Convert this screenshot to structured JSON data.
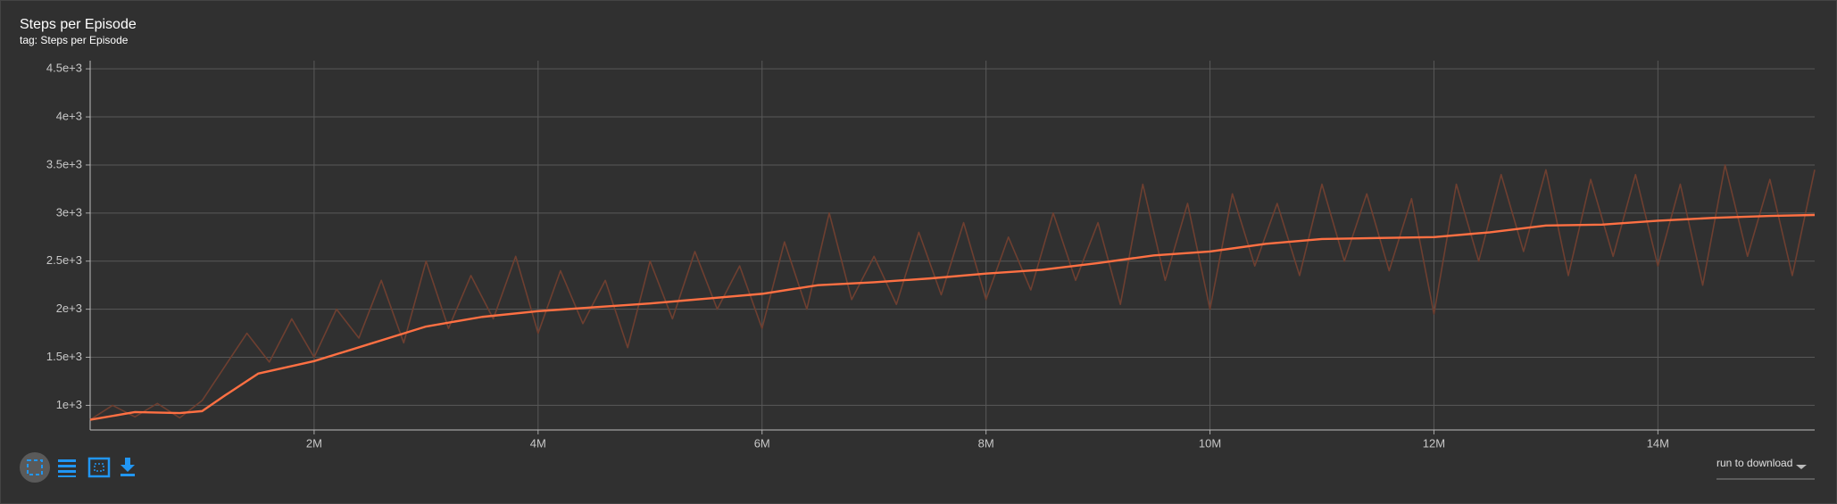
{
  "chart_data": {
    "type": "line",
    "title": "Steps per Episode",
    "subtitle": "tag: Steps per Episode",
    "xlim": [
      0,
      15400000
    ],
    "ylim": [
      744,
      4585
    ],
    "xticks": [
      {
        "value": 2000000,
        "label": "2M"
      },
      {
        "value": 4000000,
        "label": "4M"
      },
      {
        "value": 6000000,
        "label": "6M"
      },
      {
        "value": 8000000,
        "label": "8M"
      },
      {
        "value": 10000000,
        "label": "10M"
      },
      {
        "value": 12000000,
        "label": "12M"
      },
      {
        "value": 14000000,
        "label": "14M"
      }
    ],
    "yticks": [
      {
        "value": 1000,
        "label": "1e+3"
      },
      {
        "value": 1500,
        "label": "1.5e+3"
      },
      {
        "value": 2000,
        "label": "2e+3"
      },
      {
        "value": 2500,
        "label": "2.5e+3"
      },
      {
        "value": 3000,
        "label": "3e+3"
      },
      {
        "value": 3500,
        "label": "3.5e+3"
      },
      {
        "value": 4000,
        "label": "4e+3"
      },
      {
        "value": 4500,
        "label": "4.5e+3"
      }
    ],
    "grid": true,
    "series": [
      {
        "color": "#6e3f30",
        "x": [
          0,
          200000,
          400000,
          600000,
          800000,
          1000000,
          1200000,
          1400000,
          1600000,
          1800000,
          2000000,
          2200000,
          2400000,
          2600000,
          2800000,
          3000000,
          3200000,
          3400000,
          3600000,
          3800000,
          4000000,
          4200000,
          4400000,
          4600000,
          4800000,
          5000000,
          5200000,
          5400000,
          5600000,
          5800000,
          6000000,
          6200000,
          6400000,
          6600000,
          6800000,
          7000000,
          7200000,
          7400000,
          7600000,
          7800000,
          8000000,
          8200000,
          8400000,
          8600000,
          8800000,
          9000000,
          9200000,
          9400000,
          9600000,
          9800000,
          10000000,
          10200000,
          10400000,
          10600000,
          10800000,
          11000000,
          11200000,
          11400000,
          11600000,
          11800000,
          12000000,
          12200000,
          12400000,
          12600000,
          12800000,
          13000000,
          13200000,
          13400000,
          13600000,
          13800000,
          14000000,
          14200000,
          14400000,
          14600000,
          14800000,
          15000000,
          15200000,
          15400000
        ],
        "values": [
          850,
          1000,
          880,
          1020,
          870,
          1050,
          1400,
          1750,
          1450,
          1900,
          1500,
          2000,
          1700,
          2300,
          1650,
          2500,
          1800,
          2350,
          1900,
          2550,
          1750,
          2400,
          1850,
          2300,
          1600,
          2500,
          1900,
          2600,
          2000,
          2450,
          1800,
          2700,
          2000,
          3000,
          2100,
          2550,
          2050,
          2800,
          2150,
          2900,
          2100,
          2750,
          2200,
          3000,
          2300,
          2900,
          2050,
          3300,
          2300,
          3100,
          2000,
          3200,
          2450,
          3100,
          2350,
          3300,
          2500,
          3200,
          2400,
          3150,
          1950,
          3300,
          2500,
          3400,
          2600,
          3450,
          2350,
          3350,
          2550,
          3400,
          2450,
          3300,
          2250,
          3500,
          2550,
          3350,
          2350,
          3450
        ]
      },
      {
        "color": "#ff7043",
        "x": [
          0,
          400000,
          800000,
          1000000,
          1200000,
          1500000,
          2000000,
          2500000,
          3000000,
          3500000,
          4000000,
          4500000,
          5000000,
          5500000,
          6000000,
          6500000,
          7000000,
          7500000,
          8000000,
          8500000,
          9000000,
          9500000,
          10000000,
          10500000,
          11000000,
          11500000,
          12000000,
          12500000,
          13000000,
          13500000,
          14000000,
          14500000,
          15000000,
          15400000
        ],
        "values": [
          850,
          930,
          920,
          940,
          1100,
          1330,
          1460,
          1640,
          1820,
          1920,
          1980,
          2020,
          2060,
          2110,
          2160,
          2250,
          2280,
          2320,
          2370,
          2410,
          2480,
          2560,
          2600,
          2680,
          2730,
          2740,
          2750,
          2800,
          2870,
          2880,
          2920,
          2950,
          2970,
          2980
        ]
      }
    ]
  },
  "controls": {
    "download_label": "run to download"
  }
}
